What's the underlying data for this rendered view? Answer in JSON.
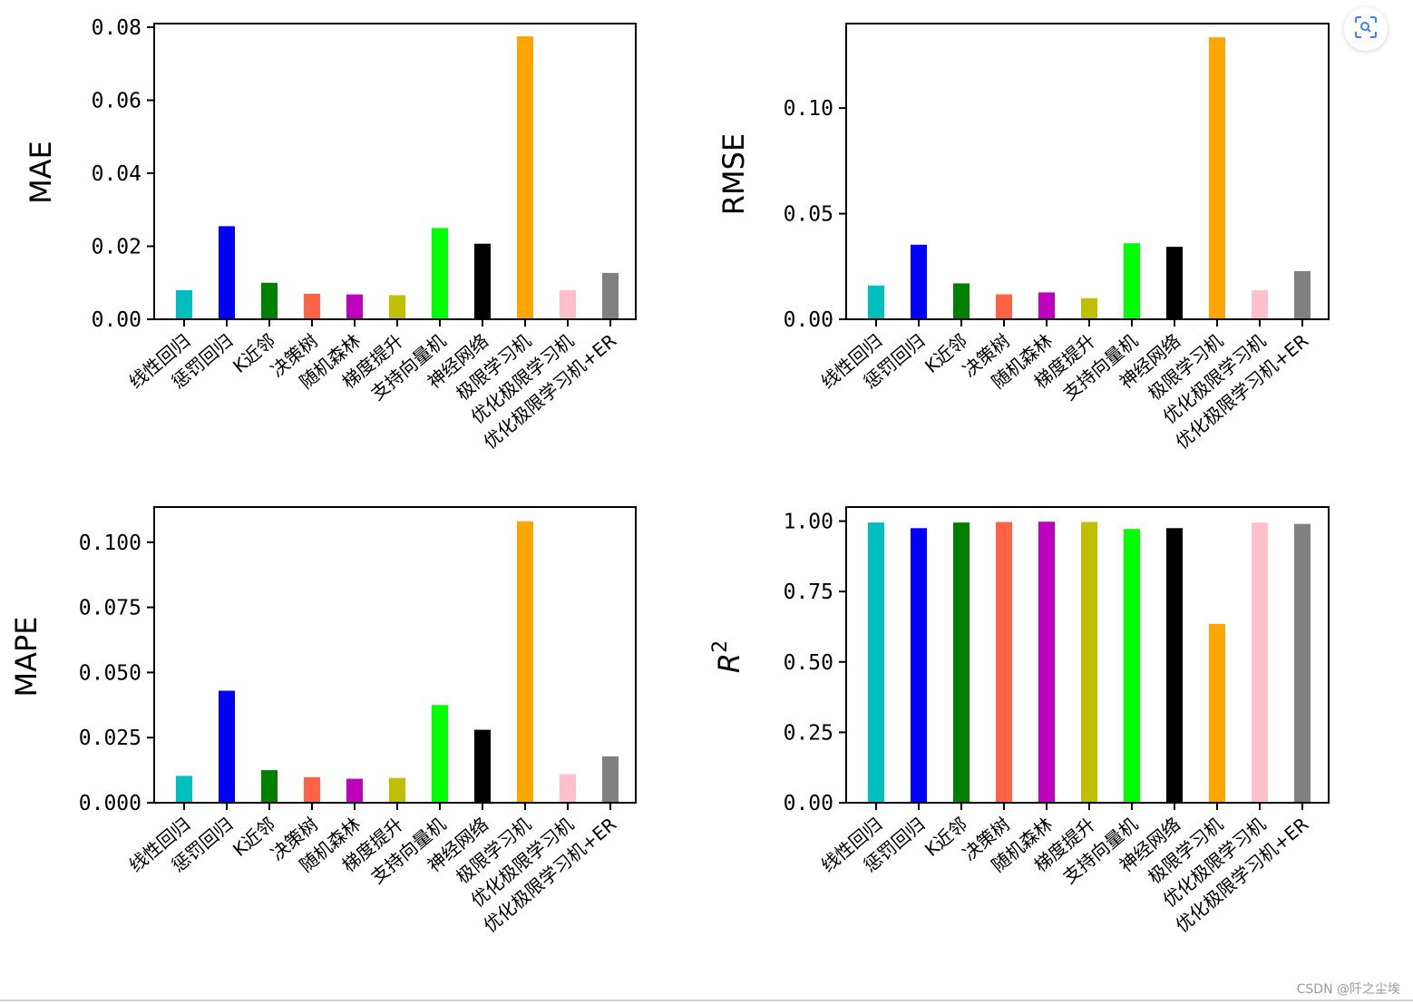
{
  "chart_data": [
    {
      "type": "bar",
      "ylabel": "MAE",
      "ylim": [
        0,
        0.081
      ],
      "yticks": [
        "0.00",
        "0.02",
        "0.04",
        "0.06",
        "0.08"
      ],
      "ytick_values": [
        0,
        0.02,
        0.04,
        0.06,
        0.08
      ],
      "categories": [
        "线性回归",
        "惩罚回归",
        "K近邻",
        "决策树",
        "随机森林",
        "梯度提升",
        "支持向量机",
        "神经网络",
        "极限学习机",
        "优化极限学习机",
        "优化极限学习机+ER"
      ],
      "values": [
        0.008,
        0.0255,
        0.01,
        0.007,
        0.0068,
        0.0066,
        0.025,
        0.0207,
        0.0775,
        0.008,
        0.0127
      ]
    },
    {
      "type": "bar",
      "ylabel": "RMSE",
      "ylim": [
        0,
        0.14
      ],
      "yticks": [
        "0.00",
        "0.05",
        "0.10"
      ],
      "ytick_values": [
        0,
        0.05,
        0.1
      ],
      "categories": [
        "线性回归",
        "惩罚回归",
        "K近邻",
        "决策树",
        "随机森林",
        "梯度提升",
        "支持向量机",
        "神经网络",
        "极限学习机",
        "优化极限学习机",
        "优化极限学习机+ER"
      ],
      "values": [
        0.016,
        0.0353,
        0.017,
        0.0118,
        0.0127,
        0.01,
        0.036,
        0.0343,
        0.1335,
        0.0137,
        0.0228
      ]
    },
    {
      "type": "bar",
      "ylabel": "MAPE",
      "ylim": [
        0,
        0.1135
      ],
      "yticks": [
        "0.000",
        "0.025",
        "0.050",
        "0.075",
        "0.100"
      ],
      "ytick_values": [
        0,
        0.025,
        0.05,
        0.075,
        0.1
      ],
      "categories": [
        "线性回归",
        "惩罚回归",
        "K近邻",
        "决策树",
        "随机森林",
        "梯度提升",
        "支持向量机",
        "神经网络",
        "极限学习机",
        "优化极限学习机",
        "优化极限学习机+ER"
      ],
      "values": [
        0.0103,
        0.043,
        0.0125,
        0.0098,
        0.0092,
        0.0095,
        0.0375,
        0.028,
        0.108,
        0.011,
        0.0178
      ]
    },
    {
      "type": "bar",
      "ylabel": "R",
      "ylabel_sup": "2",
      "ylim": [
        0,
        1.05
      ],
      "yticks": [
        "0.00",
        "0.25",
        "0.50",
        "0.75",
        "1.00"
      ],
      "ytick_values": [
        0,
        0.25,
        0.5,
        0.75,
        1.0
      ],
      "categories": [
        "线性回归",
        "惩罚回归",
        "K近邻",
        "决策树",
        "随机森林",
        "梯度提升",
        "支持向量机",
        "神经网络",
        "极限学习机",
        "优化极限学习机",
        "优化极限学习机+ER"
      ],
      "values": [
        0.995,
        0.975,
        0.995,
        0.997,
        0.998,
        0.997,
        0.972,
        0.975,
        0.635,
        0.995,
        0.99
      ]
    }
  ],
  "colors": [
    "#00bfbf",
    "#0000ff",
    "#008000",
    "#ff6347",
    "#bf00bf",
    "#bfbf00",
    "#00ff00",
    "#000000",
    "#ffa500",
    "#ffc0cb",
    "#808080"
  ],
  "ui": {
    "scan_icon": "image-search-icon",
    "watermark": "CSDN @阡之尘埃"
  }
}
